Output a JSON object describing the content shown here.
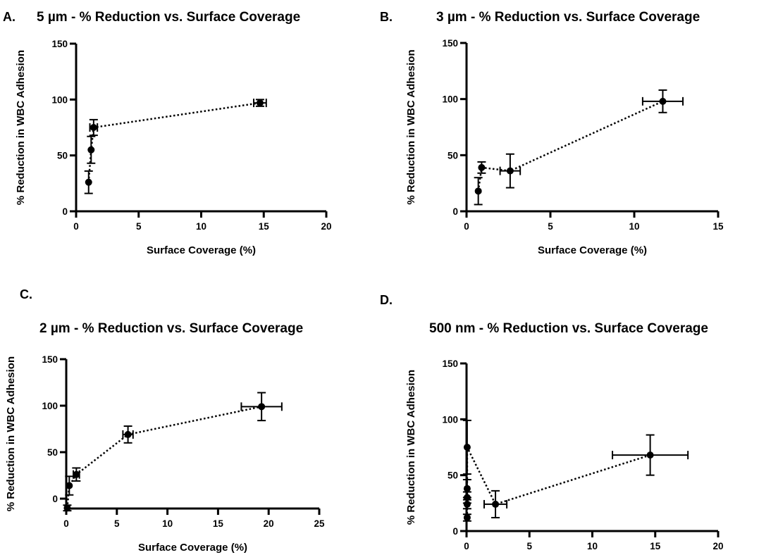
{
  "chart_data": [
    {
      "type": "scatter",
      "panel_letter": "A.",
      "title": "5 µm - % Reduction vs. Surface Coverage",
      "xlabel": "Surface Coverage (%)",
      "ylabel": "% Reduction in WBC Adhesion",
      "xlim": [
        0,
        20
      ],
      "ylim": [
        0,
        150
      ],
      "xticks": [
        0,
        5,
        10,
        15,
        20
      ],
      "yticks": [
        0,
        50,
        100,
        150
      ],
      "connect": "dotted",
      "points": [
        {
          "x": 1.0,
          "y": 26,
          "xerr": 0,
          "yerr": 10
        },
        {
          "x": 1.2,
          "y": 55,
          "xerr": 0,
          "yerr": 12
        },
        {
          "x": 1.4,
          "y": 75,
          "xerr": 0.3,
          "yerr": 7
        },
        {
          "x": 14.7,
          "y": 97,
          "xerr": 0.5,
          "yerr": 3
        }
      ]
    },
    {
      "type": "scatter",
      "panel_letter": "B.",
      "title": "3 µm - % Reduction vs. Surface Coverage",
      "xlabel": "Surface Coverage (%)",
      "ylabel": "% Reduction in WBC Adhesion",
      "xlim": [
        0,
        15
      ],
      "ylim": [
        0,
        150
      ],
      "xticks": [
        0,
        5,
        10,
        15
      ],
      "yticks": [
        0,
        50,
        100,
        150
      ],
      "connect": "dotted",
      "points": [
        {
          "x": 0.7,
          "y": 18,
          "xerr": 0,
          "yerr": 12
        },
        {
          "x": 0.9,
          "y": 39,
          "xerr": 0,
          "yerr": 5
        },
        {
          "x": 2.6,
          "y": 36,
          "xerr": 0.6,
          "yerr": 15
        },
        {
          "x": 11.7,
          "y": 98,
          "xerr": 1.2,
          "yerr": 10
        }
      ]
    },
    {
      "type": "scatter",
      "panel_letter": "C.",
      "title": "2 µm - % Reduction vs. Surface Coverage",
      "xlabel": "Surface Coverage (%)",
      "ylabel": "% Reduction in WBC Adhesion",
      "xlim": [
        0,
        25
      ],
      "ylim": [
        -10,
        150
      ],
      "xticks": [
        0,
        5,
        10,
        15,
        20,
        25
      ],
      "yticks": [
        0,
        50,
        100,
        150
      ],
      "connect": "dotted",
      "points": [
        {
          "x": 0.1,
          "y": -10,
          "xerr": 0,
          "yerr": 3
        },
        {
          "x": 0.3,
          "y": 14,
          "xerr": 0,
          "yerr": 10
        },
        {
          "x": 1.0,
          "y": 26,
          "xerr": 0.3,
          "yerr": 7
        },
        {
          "x": 6.1,
          "y": 69,
          "xerr": 0.5,
          "yerr": 9
        },
        {
          "x": 19.3,
          "y": 99,
          "xerr": 2.0,
          "yerr": 15
        }
      ]
    },
    {
      "type": "scatter",
      "panel_letter": "D.",
      "title": "500 nm - % Reduction vs. Surface Coverage",
      "xlabel": "Surface Coverage (%)",
      "ylabel": "% Reduction in WBC Adhesion",
      "xlim": [
        0,
        20
      ],
      "ylim": [
        0,
        150
      ],
      "xticks": [
        0,
        5,
        10,
        15,
        20
      ],
      "yticks": [
        0,
        50,
        100,
        150
      ],
      "connect": "dotted",
      "points": [
        {
          "x": 0.05,
          "y": 12,
          "xerr": 0,
          "yerr": 3
        },
        {
          "x": 0.05,
          "y": 24,
          "xerr": 0,
          "yerr": 4
        },
        {
          "x": 0.05,
          "y": 30,
          "xerr": 0,
          "yerr": 5
        },
        {
          "x": 0.05,
          "y": 38,
          "xerr": 0,
          "yerr": 8
        },
        {
          "x": 0.05,
          "y": 75,
          "xerr": 0,
          "yerr": 24
        },
        {
          "x": 2.3,
          "y": 24,
          "xerr": 0.9,
          "yerr": 12
        },
        {
          "x": 14.6,
          "y": 68,
          "xerr": 3.0,
          "yerr": 18
        }
      ]
    }
  ]
}
